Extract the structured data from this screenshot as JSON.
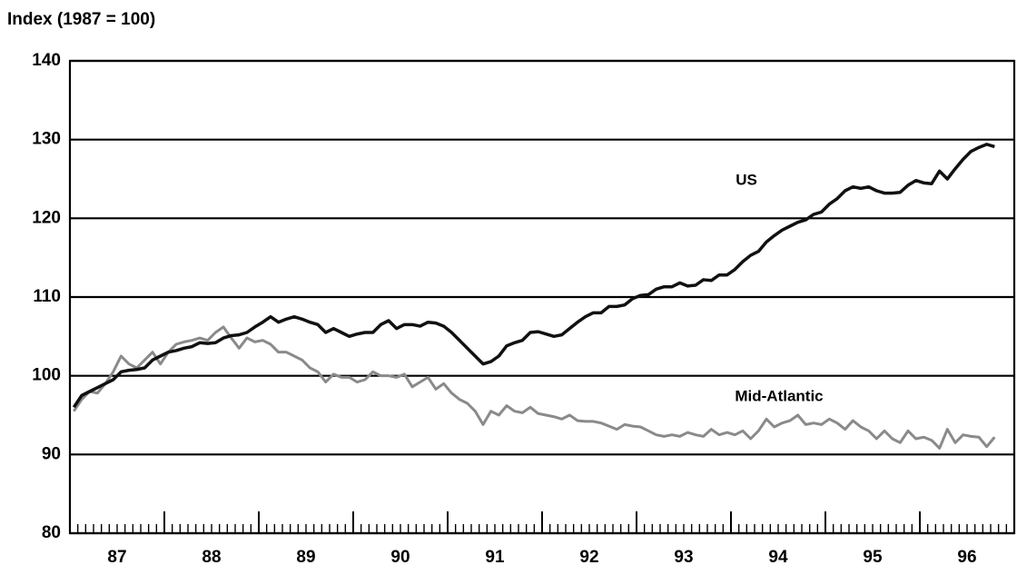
{
  "chart_data": {
    "type": "line",
    "y_axis_label": "Index (1987 = 100)",
    "categories": [
      null,
      null,
      null,
      null,
      null,
      null,
      "87",
      null,
      null,
      null,
      null,
      null,
      null,
      null,
      null,
      null,
      null,
      null,
      "88",
      null,
      null,
      null,
      null,
      null,
      null,
      null,
      null,
      null,
      null,
      null,
      "89",
      null,
      null,
      null,
      null,
      null,
      null,
      null,
      null,
      null,
      null,
      null,
      "90",
      null,
      null,
      null,
      null,
      null,
      null,
      null,
      null,
      null,
      null,
      null,
      "91",
      null,
      null,
      null,
      null,
      null,
      null,
      null,
      null,
      null,
      null,
      null,
      "92",
      null,
      null,
      null,
      null,
      null,
      null,
      null,
      null,
      null,
      null,
      null,
      "93",
      null,
      null,
      null,
      null,
      null,
      null,
      null,
      null,
      null,
      null,
      null,
      "94",
      null,
      null,
      null,
      null,
      null,
      null,
      null,
      null,
      null,
      null,
      null,
      "95",
      null,
      null,
      null,
      null,
      null,
      null,
      null,
      null,
      null,
      null,
      null,
      "96",
      null,
      null,
      null
    ],
    "series": [
      {
        "name": "US",
        "color": "#111111",
        "values": [
          96,
          97.5,
          98,
          98.5,
          99,
          99.5,
          100.5,
          100.7,
          100.8,
          101,
          102,
          102.5,
          103,
          103.2,
          103.5,
          103.7,
          104.2,
          104.1,
          104.2,
          104.8,
          105.1,
          105.2,
          105.5,
          106.2,
          106.8,
          107.5,
          106.8,
          107.2,
          107.5,
          107.2,
          106.8,
          106.5,
          105.5,
          106,
          105.5,
          105,
          105.3,
          105.5,
          105.5,
          106.5,
          107,
          106,
          106.5,
          106.5,
          106.3,
          106.8,
          106.7,
          106.3,
          105.5,
          104.5,
          103.5,
          102.5,
          101.5,
          101.8,
          102.5,
          103.8,
          104.2,
          104.5,
          105.5,
          105.6,
          105.3,
          105,
          105.2,
          106,
          106.8,
          107.5,
          108,
          108,
          108.8,
          108.8,
          109,
          109.8,
          110.2,
          110.3,
          111,
          111.3,
          111.3,
          111.8,
          111.4,
          111.5,
          112.2,
          112.1,
          112.8,
          112.8,
          113.5,
          114.5,
          115.3,
          115.8,
          117,
          117.8,
          118.5,
          119,
          119.5,
          119.8,
          120.5,
          120.8,
          121.8,
          122.5,
          123.5,
          124,
          123.8,
          124,
          123.5,
          123.2,
          123.2,
          123.3,
          124.2,
          124.8,
          124.5,
          124.4,
          126,
          125,
          126.3,
          127.5,
          128.5,
          129,
          129.4,
          129.1
        ]
      },
      {
        "name": "Mid-Atlantic",
        "color": "#8a8a8a",
        "values": [
          95.5,
          97,
          98,
          97.8,
          99,
          100.5,
          102.5,
          101.5,
          101,
          102,
          103,
          101.5,
          103,
          104,
          104.3,
          104.5,
          104.8,
          104.5,
          105.5,
          106.2,
          104.8,
          103.5,
          104.8,
          104.3,
          104.5,
          104,
          103,
          103,
          102.5,
          102,
          101,
          100.5,
          99.2,
          100.2,
          99.8,
          99.8,
          99.2,
          99.5,
          100.5,
          100,
          100,
          99.8,
          100.2,
          98.6,
          99.2,
          99.8,
          98.3,
          99,
          97.8,
          97,
          96.5,
          95.5,
          93.8,
          95.5,
          95,
          96.2,
          95.5,
          95.3,
          96,
          95.2,
          95,
          94.8,
          94.5,
          95,
          94.3,
          94.2,
          94.2,
          94,
          93.6,
          93.2,
          93.8,
          93.6,
          93.5,
          93,
          92.5,
          92.3,
          92.5,
          92.3,
          92.8,
          92.5,
          92.3,
          93.2,
          92.5,
          92.8,
          92.5,
          93,
          92,
          93,
          94.5,
          93.5,
          94,
          94.3,
          95,
          93.8,
          94,
          93.8,
          94.5,
          94,
          93.2,
          94.3,
          93.5,
          93,
          92,
          93,
          92,
          91.5,
          93,
          92,
          92.2,
          91.8,
          90.8,
          93.2,
          91.5,
          92.5,
          92.3,
          92.2,
          91,
          92.2
        ]
      }
    ],
    "ylim": [
      80,
      140
    ],
    "yticks": [
      80,
      90,
      100,
      110,
      120,
      130,
      140
    ],
    "grid": true
  }
}
